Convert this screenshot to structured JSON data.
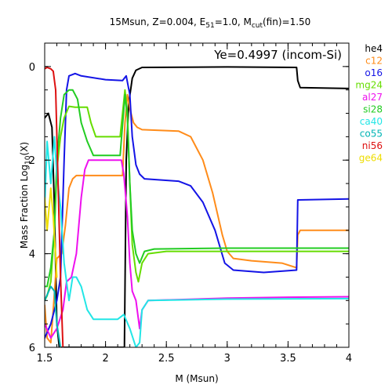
{
  "chart_data": {
    "type": "line",
    "title_parts": [
      "15Msun, Z=0.004, E",
      "51",
      "=1.0, M",
      "cut",
      "(fin)=1.50"
    ],
    "annotation": "Ye=0.4997 (incom-Si)",
    "xlabel": "M (Msun)",
    "ylabel_parts": [
      "Mass Fraction Log",
      "10",
      "(X)"
    ],
    "xlim": [
      1.5,
      4.0
    ],
    "ylim": [
      -6,
      0.5
    ],
    "x_ticks": [
      1.5,
      2,
      2.5,
      3,
      3.5,
      4
    ],
    "x_tick_labels": [
      "1.5",
      "2",
      "2.5",
      "3",
      "3.5",
      "4"
    ],
    "y_ticks": [
      0,
      -2,
      -4,
      -6
    ],
    "y_tick_labels": [
      "0",
      "2",
      "4",
      "6"
    ],
    "legend_position": "right-outside",
    "series": [
      {
        "name": "he4",
        "color": "#000000",
        "points": [
          [
            1.5,
            -1.1
          ],
          [
            1.53,
            -1.0
          ],
          [
            1.56,
            -1.3
          ],
          [
            1.58,
            -3
          ],
          [
            1.6,
            -5.5
          ],
          [
            1.62,
            -6
          ],
          [
            2.155,
            -6
          ],
          [
            2.16,
            -4.8
          ],
          [
            2.17,
            -2.0
          ],
          [
            2.19,
            -0.8
          ],
          [
            2.22,
            -0.25
          ],
          [
            2.25,
            -0.08
          ],
          [
            2.3,
            -0.02
          ],
          [
            3.0,
            -0.01
          ],
          [
            3.57,
            -0.02
          ],
          [
            3.58,
            -0.3
          ],
          [
            3.6,
            -0.45
          ],
          [
            4.0,
            -0.47
          ]
        ]
      },
      {
        "name": "c12",
        "color": "#ff8c1a",
        "points": [
          [
            1.5,
            -5.1
          ],
          [
            1.52,
            -5.8
          ],
          [
            1.55,
            -5.9
          ],
          [
            1.57,
            -5.2
          ],
          [
            1.6,
            -4.1
          ],
          [
            1.64,
            -4.0
          ],
          [
            1.67,
            -3.4
          ],
          [
            1.7,
            -2.6
          ],
          [
            1.73,
            -2.4
          ],
          [
            1.76,
            -2.33
          ],
          [
            2.14,
            -2.33
          ],
          [
            2.16,
            -1.2
          ],
          [
            2.18,
            -0.6
          ],
          [
            2.2,
            -0.9
          ],
          [
            2.23,
            -1.2
          ],
          [
            2.26,
            -1.3
          ],
          [
            2.3,
            -1.35
          ],
          [
            2.6,
            -1.38
          ],
          [
            2.7,
            -1.5
          ],
          [
            2.8,
            -2.0
          ],
          [
            2.88,
            -2.7
          ],
          [
            2.96,
            -3.6
          ],
          [
            3.0,
            -3.95
          ],
          [
            3.05,
            -4.1
          ],
          [
            3.2,
            -4.15
          ],
          [
            3.45,
            -4.2
          ],
          [
            3.57,
            -4.3
          ],
          [
            3.58,
            -3.6
          ],
          [
            3.6,
            -3.5
          ],
          [
            4.0,
            -3.5
          ]
        ]
      },
      {
        "name": "o16",
        "color": "#1414e6",
        "points": [
          [
            1.5,
            -5.8
          ],
          [
            1.55,
            -5.5
          ],
          [
            1.6,
            -5.0
          ],
          [
            1.63,
            -4.5
          ],
          [
            1.66,
            -2.0
          ],
          [
            1.68,
            -0.5
          ],
          [
            1.7,
            -0.2
          ],
          [
            1.75,
            -0.15
          ],
          [
            1.8,
            -0.2
          ],
          [
            2.0,
            -0.28
          ],
          [
            2.14,
            -0.3
          ],
          [
            2.17,
            -0.2
          ],
          [
            2.2,
            -0.6
          ],
          [
            2.22,
            -1.5
          ],
          [
            2.25,
            -2.1
          ],
          [
            2.28,
            -2.3
          ],
          [
            2.32,
            -2.4
          ],
          [
            2.6,
            -2.45
          ],
          [
            2.7,
            -2.55
          ],
          [
            2.8,
            -2.9
          ],
          [
            2.9,
            -3.5
          ],
          [
            2.98,
            -4.2
          ],
          [
            3.05,
            -4.35
          ],
          [
            3.3,
            -4.4
          ],
          [
            3.57,
            -4.35
          ],
          [
            3.58,
            -2.85
          ],
          [
            4.0,
            -2.83
          ]
        ]
      },
      {
        "name": "mg24",
        "color": "#66dd00",
        "points": [
          [
            1.5,
            -5.0
          ],
          [
            1.52,
            -4.9
          ],
          [
            1.55,
            -4.6
          ],
          [
            1.58,
            -3.5
          ],
          [
            1.6,
            -2.2
          ],
          [
            1.63,
            -1.5
          ],
          [
            1.66,
            -1.1
          ],
          [
            1.7,
            -0.85
          ],
          [
            1.75,
            -0.87
          ],
          [
            1.85,
            -0.87
          ],
          [
            1.88,
            -1.2
          ],
          [
            1.92,
            -1.5
          ],
          [
            1.97,
            -1.5
          ],
          [
            2.12,
            -1.5
          ],
          [
            2.16,
            -0.5
          ],
          [
            2.18,
            -1.0
          ],
          [
            2.2,
            -2.5
          ],
          [
            2.22,
            -3.8
          ],
          [
            2.25,
            -4.4
          ],
          [
            2.27,
            -4.6
          ],
          [
            2.3,
            -4.2
          ],
          [
            2.35,
            -4.0
          ],
          [
            2.5,
            -3.95
          ],
          [
            3.0,
            -3.95
          ],
          [
            4.0,
            -3.95
          ]
        ]
      },
      {
        "name": "al27",
        "color": "#ee10ee",
        "points": [
          [
            1.5,
            -5.5
          ],
          [
            1.55,
            -5.8
          ],
          [
            1.6,
            -5.6
          ],
          [
            1.65,
            -5.2
          ],
          [
            1.68,
            -4.6
          ],
          [
            1.72,
            -4.5
          ],
          [
            1.76,
            -4.0
          ],
          [
            1.8,
            -2.8
          ],
          [
            1.83,
            -2.2
          ],
          [
            1.86,
            -2.0
          ],
          [
            2.13,
            -2.0
          ],
          [
            2.15,
            -2.3
          ],
          [
            2.18,
            -3.2
          ],
          [
            2.2,
            -4.2
          ],
          [
            2.22,
            -4.8
          ],
          [
            2.25,
            -5.0
          ],
          [
            2.28,
            -5.6
          ],
          [
            2.3,
            -5.2
          ],
          [
            2.35,
            -5.0
          ],
          [
            3.0,
            -4.95
          ],
          [
            3.5,
            -4.93
          ],
          [
            4.0,
            -4.92
          ]
        ]
      },
      {
        "name": "si28",
        "color": "#22cc22",
        "points": [
          [
            1.5,
            -4.7
          ],
          [
            1.52,
            -4.7
          ],
          [
            1.55,
            -4.3
          ],
          [
            1.58,
            -3.5
          ],
          [
            1.6,
            -2.0
          ],
          [
            1.63,
            -1.1
          ],
          [
            1.66,
            -0.6
          ],
          [
            1.7,
            -0.5
          ],
          [
            1.73,
            -0.5
          ],
          [
            1.77,
            -0.7
          ],
          [
            1.8,
            -1.2
          ],
          [
            1.85,
            -1.6
          ],
          [
            1.9,
            -1.9
          ],
          [
            2.12,
            -1.9
          ],
          [
            2.16,
            -0.6
          ],
          [
            2.18,
            -1.1
          ],
          [
            2.2,
            -2.5
          ],
          [
            2.22,
            -3.5
          ],
          [
            2.25,
            -4.0
          ],
          [
            2.28,
            -4.2
          ],
          [
            2.32,
            -3.95
          ],
          [
            2.4,
            -3.9
          ],
          [
            3.0,
            -3.88
          ],
          [
            4.0,
            -3.88
          ]
        ]
      },
      {
        "name": "ca40",
        "color": "#22e6e6",
        "points": [
          [
            1.5,
            -3.0
          ],
          [
            1.52,
            -1.6
          ],
          [
            1.55,
            -2.5
          ],
          [
            1.58,
            -1.5
          ],
          [
            1.6,
            -2.3
          ],
          [
            1.63,
            -3.0
          ],
          [
            1.66,
            -4.2
          ],
          [
            1.7,
            -5.0
          ],
          [
            1.73,
            -4.5
          ],
          [
            1.76,
            -4.5
          ],
          [
            1.8,
            -4.7
          ],
          [
            1.85,
            -5.2
          ],
          [
            1.9,
            -5.4
          ],
          [
            2.1,
            -5.4
          ],
          [
            2.15,
            -5.3
          ],
          [
            2.2,
            -5.6
          ],
          [
            2.25,
            -6.0
          ],
          [
            2.28,
            -5.9
          ],
          [
            2.3,
            -5.2
          ],
          [
            2.35,
            -5.0
          ],
          [
            3.0,
            -4.97
          ],
          [
            4.0,
            -4.96
          ]
        ]
      },
      {
        "name": "co55",
        "color": "#00b4b4",
        "points": [
          [
            1.5,
            -5.0
          ],
          [
            1.55,
            -4.7
          ],
          [
            1.58,
            -4.8
          ],
          [
            1.6,
            -5.5
          ],
          [
            1.63,
            -6.0
          ]
        ]
      },
      {
        "name": "ni56",
        "color": "#dd1010",
        "points": [
          [
            1.5,
            -0.05
          ],
          [
            1.52,
            -0.02
          ],
          [
            1.55,
            -0.05
          ],
          [
            1.57,
            -0.1
          ],
          [
            1.59,
            -0.5
          ],
          [
            1.61,
            -2.5
          ],
          [
            1.63,
            -4.5
          ],
          [
            1.65,
            -6.0
          ]
        ]
      },
      {
        "name": "ge64",
        "color": "#eedd00",
        "points": [
          [
            1.5,
            -2.8
          ],
          [
            1.52,
            -3.5
          ],
          [
            1.55,
            -2.6
          ],
          [
            1.57,
            -3.2
          ],
          [
            1.6,
            -4.5
          ]
        ]
      }
    ]
  }
}
